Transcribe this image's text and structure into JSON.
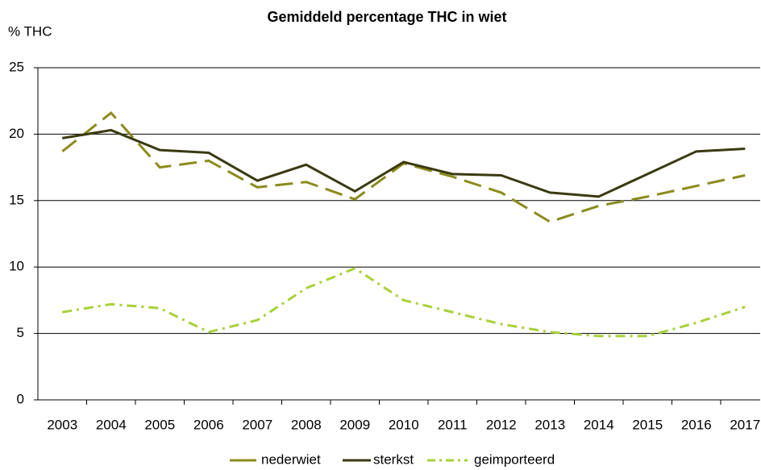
{
  "chart_data": {
    "type": "line",
    "title": "Gemiddeld percentage THC in wiet",
    "y_label": "% THC",
    "categories": [
      "2003",
      "2004",
      "2005",
      "2006",
      "2007",
      "2008",
      "2009",
      "2010",
      "2011",
      "2012",
      "2013",
      "2014",
      "2015",
      "2016",
      "2017"
    ],
    "series": [
      {
        "name": "nederwiet",
        "color": "#8b8b1e",
        "style": "dashed",
        "values": [
          18.7,
          21.6,
          17.5,
          18.0,
          16.0,
          16.4,
          15.1,
          17.8,
          16.8,
          15.6,
          13.4,
          14.6,
          15.3,
          16.1,
          16.9
        ]
      },
      {
        "name": "sterkst",
        "color": "#3a3a12",
        "style": "solid",
        "values": [
          19.7,
          20.3,
          18.8,
          18.6,
          16.5,
          17.7,
          15.7,
          17.9,
          17.0,
          16.9,
          15.6,
          15.3,
          17.0,
          18.7,
          18.9
        ]
      },
      {
        "name": "geimporteerd",
        "color": "#a8d13a",
        "style": "dashdot",
        "values": [
          6.6,
          7.2,
          6.9,
          5.1,
          6.0,
          8.4,
          9.9,
          7.5,
          6.6,
          5.7,
          5.1,
          4.8,
          4.8,
          5.8,
          7.0
        ]
      }
    ],
    "ylim": [
      0,
      25
    ],
    "yticks": [
      0,
      5,
      10,
      15,
      20,
      25
    ],
    "grid": true,
    "legend": "bottom"
  }
}
